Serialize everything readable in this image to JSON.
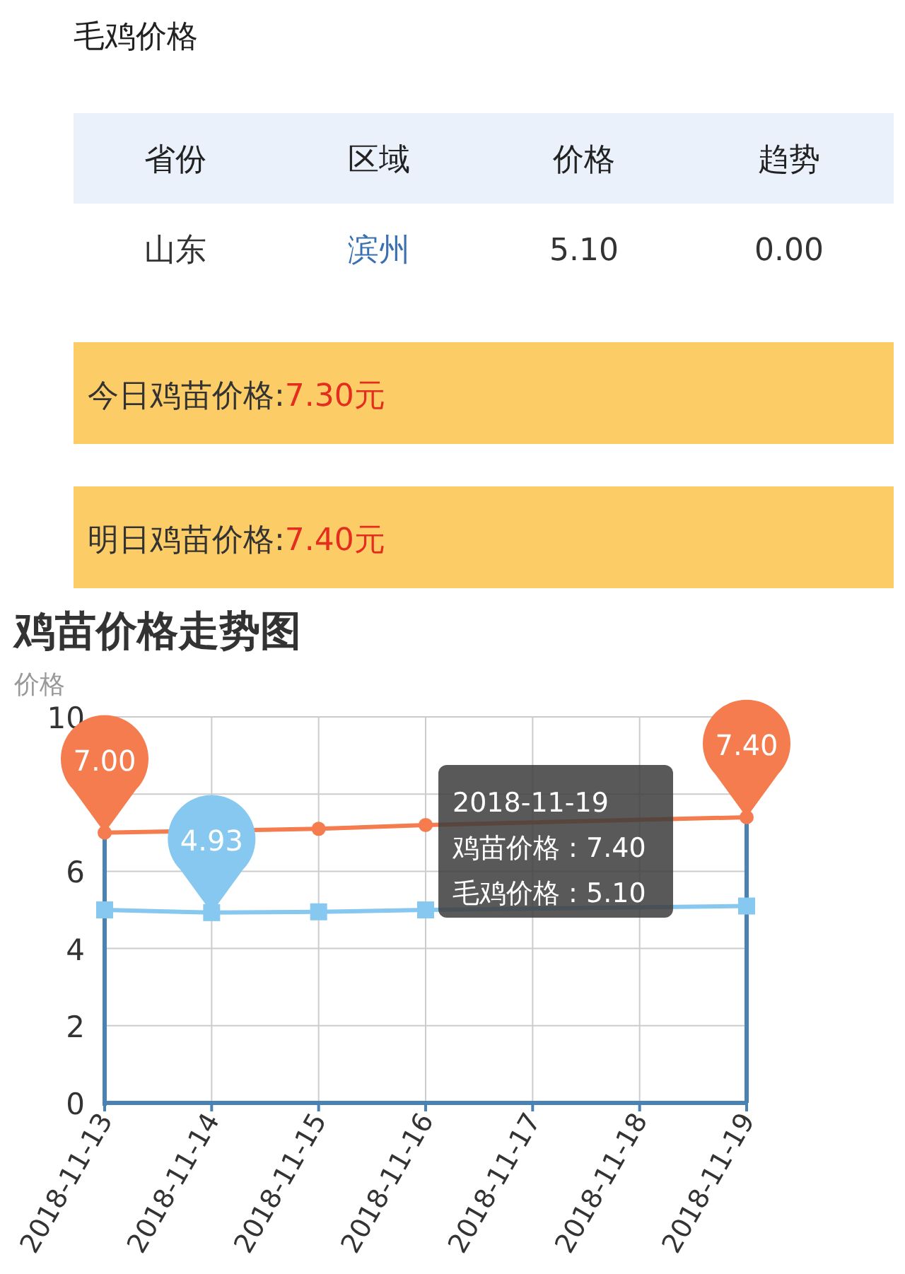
{
  "chart_data": [
    {
      "type": "other",
      "title": "毛鸡价格",
      "annotations": [
        "省份",
        "区域",
        "价格",
        "趋势",
        "山东",
        "滨州",
        "5.10",
        "0.00",
        "今日鸡苗价格:",
        "7.30元",
        "明日鸡苗价格:",
        "7.40元"
      ]
    },
    {
      "type": "line",
      "title": "鸡苗价格走势图",
      "ylabel": "价格",
      "categories": [
        "2018-11-13",
        "2018-11-14",
        "2018-11-15",
        "2018-11-16",
        "2018-11-17",
        "2018-11-18",
        "2018-11-19"
      ],
      "series": [
        {
          "name": "鸡苗价格",
          "color": "#f47c4e",
          "marker": "circle",
          "values": [
            7.0,
            null,
            7.1,
            7.2,
            null,
            null,
            7.4
          ]
        },
        {
          "name": "毛鸡价格",
          "color": "#86c8f0",
          "marker": "square",
          "values": [
            5.0,
            4.93,
            4.95,
            5.0,
            null,
            null,
            5.1
          ]
        }
      ],
      "ylim": [
        0,
        10
      ],
      "yticks": [
        0,
        2,
        4,
        6,
        {
          "value": 8,
          "label": null
        },
        10
      ],
      "grid": true,
      "ref_lines": [
        {
          "axis": "x",
          "value": "2018-11-19",
          "color": "#4a82b4"
        }
      ],
      "annotations": [
        {
          "text": "7.00",
          "x": "2018-11-13",
          "y": 7.0
        },
        {
          "text": "4.93",
          "x": "2018-11-14",
          "y": 4.93
        },
        {
          "text": "7.40",
          "x": "2018-11-19",
          "y": 7.4
        },
        "2018-11-19",
        " : 7.40",
        " : 5.10"
      ]
    }
  ]
}
